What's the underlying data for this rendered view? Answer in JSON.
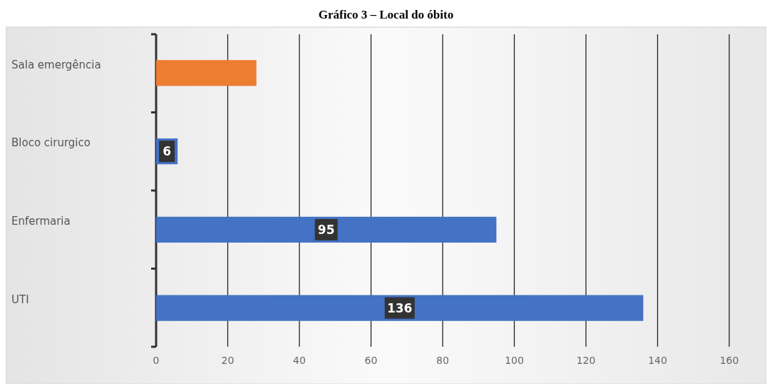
{
  "chart_data": {
    "type": "bar",
    "orientation": "horizontal",
    "title": "Gráfico 3 – Local do óbito",
    "categories": [
      "Sala emergência",
      "Bloco cirurgico",
      "Enfermaria",
      "UTI"
    ],
    "values": [
      28,
      6,
      95,
      136
    ],
    "colors": [
      "#ed7d31",
      "#4472c4",
      "#4472c4",
      "#4472c4"
    ],
    "value_labels": [
      null,
      "6",
      "95",
      "136"
    ],
    "xlim": [
      0,
      160
    ],
    "xticks": [
      0,
      20,
      40,
      60,
      80,
      100,
      120,
      140,
      160
    ],
    "grid": "x"
  }
}
